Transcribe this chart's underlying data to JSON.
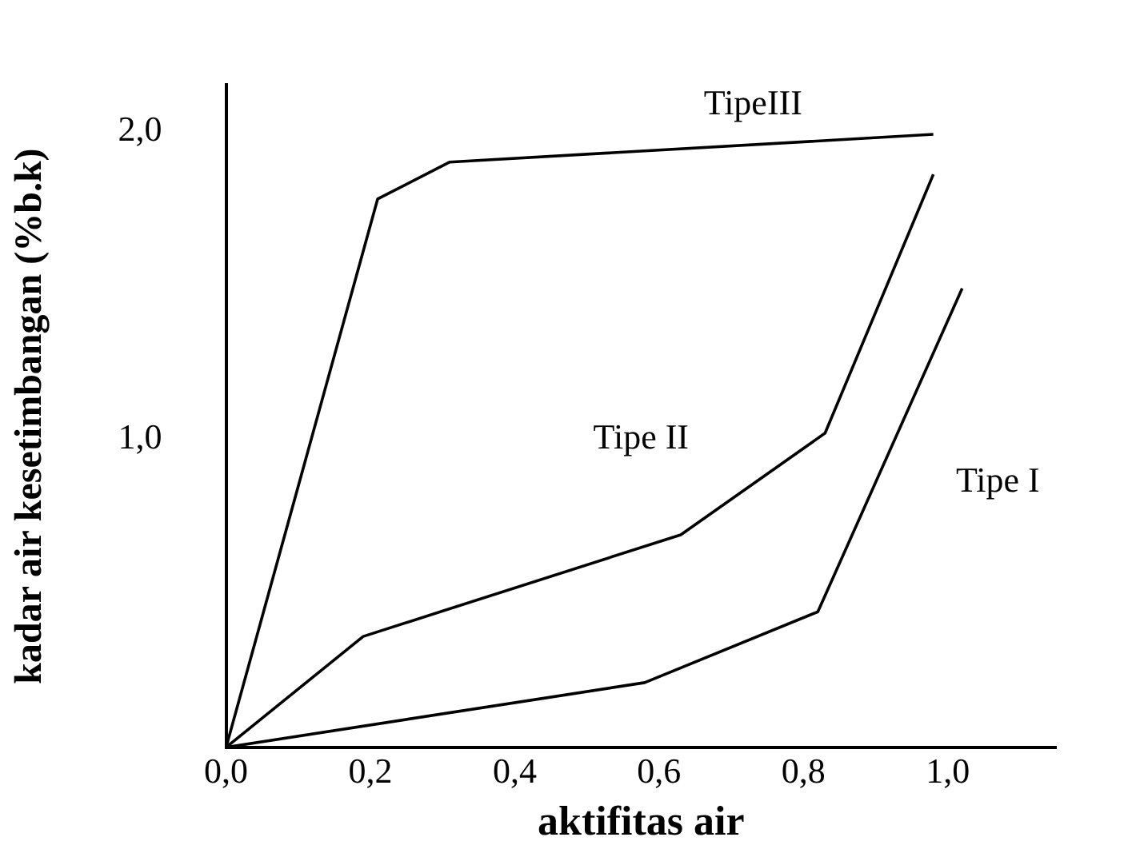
{
  "chart_data": {
    "type": "line",
    "xlabel": "aktifitas air",
    "ylabel": "kadar air kesetimbangan (%b.k)",
    "xlim": [
      0,
      1.15
    ],
    "ylim": [
      0,
      2.15
    ],
    "xticks": [
      {
        "value": 0,
        "label": "0,0"
      },
      {
        "value": 0.2,
        "label": "0,2"
      },
      {
        "value": 0.4,
        "label": "0,4"
      },
      {
        "value": 0.6,
        "label": "0,6"
      },
      {
        "value": 0.8,
        "label": "0,8"
      },
      {
        "value": 1,
        "label": "1,0"
      }
    ],
    "yticks": [
      {
        "value": 1,
        "label": "1,0"
      },
      {
        "value": 2,
        "label": "2,0"
      }
    ],
    "grid": false,
    "legend": false,
    "marker": "none",
    "line_style": "solid",
    "series": [
      {
        "name": "TipeIII",
        "color": "#000000",
        "x": [
          0,
          0.21,
          0.31,
          0.98
        ],
        "values": [
          0,
          1.78,
          1.9,
          1.99
        ]
      },
      {
        "name": "Tipe II",
        "color": "#000000",
        "x": [
          0,
          0.19,
          0.63,
          0.83,
          0.98
        ],
        "values": [
          0,
          0.36,
          0.69,
          1.02,
          1.86
        ]
      },
      {
        "name": "Tipe I",
        "color": "#000000",
        "x": [
          0,
          0.58,
          0.82,
          1.02
        ],
        "values": [
          0,
          0.21,
          0.44,
          1.49
        ]
      }
    ]
  }
}
